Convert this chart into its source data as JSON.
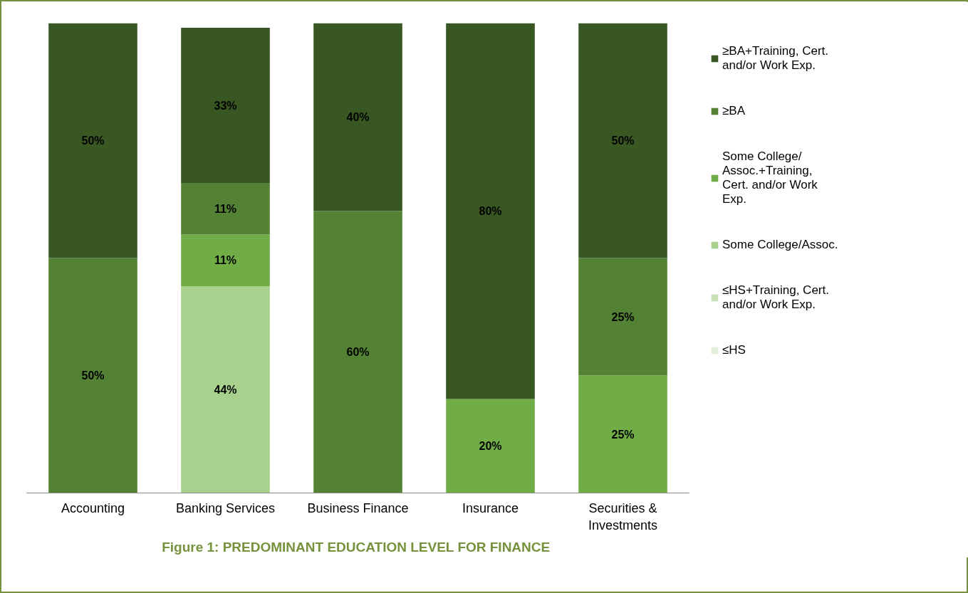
{
  "chart_data": {
    "type": "bar",
    "stacked": true,
    "title": "Figure 1:  PREDOMINANT EDUCATION LEVEL FOR FINANCE",
    "categories": [
      "Accounting",
      "Banking Services",
      "Business Finance",
      "Insurance",
      "Securities & Investments"
    ],
    "ylim": [
      0,
      100
    ],
    "tick_labels": "x",
    "grid": false,
    "legend": "right",
    "series": [
      {
        "name": "≤HS",
        "color": "#e2efd9",
        "values": [
          null,
          null,
          null,
          null,
          null
        ],
        "value_labels": [
          null,
          null,
          null,
          null,
          null
        ]
      },
      {
        "name": "≤HS+Training, Cert. and/or Work Exp.",
        "color": "#c5e0b3",
        "values": [
          null,
          null,
          null,
          null,
          null
        ],
        "value_labels": [
          null,
          null,
          null,
          null,
          null
        ]
      },
      {
        "name": "Some College/Assoc.",
        "color": "#a9d18e",
        "values": [
          null,
          44,
          null,
          null,
          null
        ],
        "value_labels": [
          null,
          "44%",
          null,
          null,
          null
        ]
      },
      {
        "name": "Some College/ Assoc.+Training, Cert. and/or Work Exp.",
        "color": "#70ad47",
        "values": [
          null,
          11,
          null,
          20,
          25
        ],
        "value_labels": [
          null,
          "11%",
          null,
          "20%",
          "25%"
        ]
      },
      {
        "name": "≥BA",
        "color": "#548235",
        "values": [
          50,
          11,
          60,
          null,
          25
        ],
        "value_labels": [
          "50%",
          "11%",
          "60%",
          null,
          "25%"
        ]
      },
      {
        "name": "≥BA+Training, Cert. and/or Work Exp.",
        "color": "#385723",
        "values": [
          50,
          33,
          40,
          80,
          50
        ],
        "value_labels": [
          "50%",
          "33%",
          "40%",
          "80%",
          "50%"
        ]
      }
    ]
  }
}
